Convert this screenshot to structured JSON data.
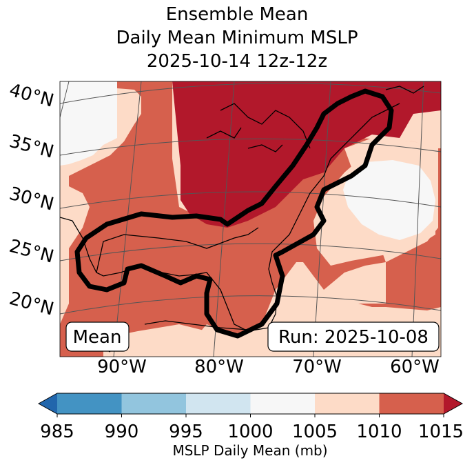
{
  "title": {
    "line1": "Ensemble Mean",
    "line2": "Daily Mean Minimum MSLP",
    "line3": "2025-10-14 12z-12z"
  },
  "map": {
    "lat_labels": [
      "40°N",
      "35°N",
      "30°N",
      "25°N",
      "20°N"
    ],
    "lon_labels": [
      "90°W",
      "80°W",
      "70°W",
      "60°W"
    ],
    "mean_label": "Mean",
    "run_label": "Run: 2025-10-08"
  },
  "colorbar": {
    "ticks": [
      "985",
      "990",
      "995",
      "1000",
      "1005",
      "1010",
      "1015"
    ],
    "label": "MSLP Daily Mean (mb)",
    "colors": {
      "under": "#2166ac",
      "b985_990": "#4393c3",
      "b990_995": "#92c5de",
      "b995_1000": "#d1e5f0",
      "b1000_1005": "#f7f7f7",
      "b1005_1010": "#fddbc7",
      "b1010_1015": "#d6604d",
      "over": "#b2182b"
    }
  }
}
